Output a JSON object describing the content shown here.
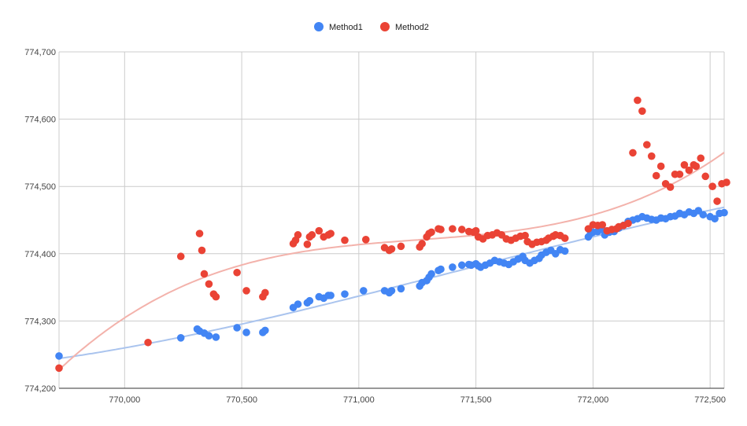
{
  "chart_data": {
    "type": "scatter",
    "title": "",
    "xlabel": "",
    "ylabel": "",
    "xlim": [
      769720,
      772560
    ],
    "ylim": [
      774200,
      774700
    ],
    "x_ticks": [
      770000,
      770500,
      771000,
      771500,
      772000,
      772500
    ],
    "x_tick_labels": [
      "770,000",
      "770,500",
      "771,000",
      "771,500",
      "772,000",
      "772,500"
    ],
    "y_ticks": [
      774200,
      774300,
      774400,
      774500,
      774600,
      774700
    ],
    "y_tick_labels": [
      "774,200",
      "774,300",
      "774,400",
      "774,500",
      "774,600",
      "774,700"
    ],
    "grid": true,
    "legend_position": "top",
    "trendlines": "polynomial",
    "series": [
      {
        "name": "Method1",
        "color": "#4285f4",
        "trend_color": "#aac4ee",
        "points": [
          [
            769720,
            774248
          ],
          [
            770240,
            774275
          ],
          [
            770310,
            774288
          ],
          [
            770320,
            774285
          ],
          [
            770340,
            774282
          ],
          [
            770360,
            774278
          ],
          [
            770390,
            774276
          ],
          [
            770480,
            774290
          ],
          [
            770520,
            774283
          ],
          [
            770590,
            774283
          ],
          [
            770600,
            774286
          ],
          [
            770720,
            774320
          ],
          [
            770740,
            774325
          ],
          [
            770780,
            774327
          ],
          [
            770790,
            774330
          ],
          [
            770830,
            774336
          ],
          [
            770850,
            774334
          ],
          [
            770870,
            774338
          ],
          [
            770880,
            774338
          ],
          [
            770940,
            774340
          ],
          [
            771020,
            774345
          ],
          [
            771110,
            774345
          ],
          [
            771130,
            774342
          ],
          [
            771140,
            774345
          ],
          [
            771180,
            774348
          ],
          [
            771260,
            774352
          ],
          [
            771270,
            774357
          ],
          [
            771290,
            774360
          ],
          [
            771300,
            774365
          ],
          [
            771310,
            774370
          ],
          [
            771340,
            774375
          ],
          [
            771350,
            774377
          ],
          [
            771400,
            774380
          ],
          [
            771440,
            774383
          ],
          [
            771470,
            774384
          ],
          [
            771480,
            774383
          ],
          [
            771500,
            774385
          ],
          [
            771510,
            774382
          ],
          [
            771520,
            774380
          ],
          [
            771540,
            774383
          ],
          [
            771560,
            774386
          ],
          [
            771580,
            774390
          ],
          [
            771600,
            774388
          ],
          [
            771620,
            774386
          ],
          [
            771640,
            774384
          ],
          [
            771660,
            774388
          ],
          [
            771680,
            774392
          ],
          [
            771700,
            774396
          ],
          [
            771710,
            774390
          ],
          [
            771730,
            774386
          ],
          [
            771750,
            774390
          ],
          [
            771770,
            774393
          ],
          [
            771780,
            774398
          ],
          [
            771800,
            774402
          ],
          [
            771820,
            774405
          ],
          [
            771840,
            774400
          ],
          [
            771860,
            774406
          ],
          [
            771880,
            774404
          ],
          [
            771980,
            774425
          ],
          [
            771990,
            774430
          ],
          [
            772000,
            774432
          ],
          [
            772020,
            774433
          ],
          [
            772040,
            774436
          ],
          [
            772050,
            774428
          ],
          [
            772070,
            774432
          ],
          [
            772090,
            774433
          ],
          [
            772110,
            774438
          ],
          [
            772130,
            774442
          ],
          [
            772150,
            774448
          ],
          [
            772170,
            774450
          ],
          [
            772190,
            774452
          ],
          [
            772210,
            774455
          ],
          [
            772230,
            774453
          ],
          [
            772250,
            774451
          ],
          [
            772270,
            774450
          ],
          [
            772290,
            774453
          ],
          [
            772310,
            774452
          ],
          [
            772330,
            774455
          ],
          [
            772350,
            774456
          ],
          [
            772370,
            774460
          ],
          [
            772390,
            774458
          ],
          [
            772410,
            774462
          ],
          [
            772430,
            774460
          ],
          [
            772450,
            774464
          ],
          [
            772470,
            774458
          ],
          [
            772500,
            774455
          ],
          [
            772520,
            774452
          ],
          [
            772540,
            774460
          ],
          [
            772560,
            774461
          ]
        ]
      },
      {
        "name": "Method2",
        "color": "#ea4335",
        "trend_color": "#f3b2ab",
        "points": [
          [
            769720,
            774230
          ],
          [
            770100,
            774268
          ],
          [
            770240,
            774396
          ],
          [
            770320,
            774430
          ],
          [
            770330,
            774405
          ],
          [
            770340,
            774370
          ],
          [
            770360,
            774355
          ],
          [
            770380,
            774340
          ],
          [
            770390,
            774336
          ],
          [
            770480,
            774372
          ],
          [
            770520,
            774345
          ],
          [
            770590,
            774336
          ],
          [
            770600,
            774342
          ],
          [
            770720,
            774415
          ],
          [
            770730,
            774420
          ],
          [
            770740,
            774428
          ],
          [
            770780,
            774414
          ],
          [
            770790,
            774425
          ],
          [
            770800,
            774428
          ],
          [
            770830,
            774434
          ],
          [
            770850,
            774425
          ],
          [
            770870,
            774428
          ],
          [
            770880,
            774430
          ],
          [
            770940,
            774420
          ],
          [
            771030,
            774421
          ],
          [
            771110,
            774409
          ],
          [
            771130,
            774405
          ],
          [
            771140,
            774407
          ],
          [
            771180,
            774411
          ],
          [
            771260,
            774410
          ],
          [
            771270,
            774415
          ],
          [
            771290,
            774425
          ],
          [
            771300,
            774430
          ],
          [
            771310,
            774432
          ],
          [
            771340,
            774437
          ],
          [
            771350,
            774436
          ],
          [
            771400,
            774437
          ],
          [
            771440,
            774436
          ],
          [
            771470,
            774433
          ],
          [
            771490,
            774432
          ],
          [
            771500,
            774434
          ],
          [
            771510,
            774425
          ],
          [
            771530,
            774422
          ],
          [
            771550,
            774427
          ],
          [
            771570,
            774428
          ],
          [
            771590,
            774431
          ],
          [
            771610,
            774428
          ],
          [
            771630,
            774422
          ],
          [
            771650,
            774420
          ],
          [
            771670,
            774423
          ],
          [
            771690,
            774426
          ],
          [
            771710,
            774427
          ],
          [
            771720,
            774418
          ],
          [
            771740,
            774414
          ],
          [
            771760,
            774417
          ],
          [
            771780,
            774418
          ],
          [
            771800,
            774420
          ],
          [
            771810,
            774423
          ],
          [
            771830,
            774426
          ],
          [
            771840,
            774428
          ],
          [
            771860,
            774427
          ],
          [
            771880,
            774423
          ],
          [
            771980,
            774437
          ],
          [
            772000,
            774443
          ],
          [
            772020,
            774442
          ],
          [
            772040,
            774443
          ],
          [
            772060,
            774434
          ],
          [
            772080,
            774436
          ],
          [
            772100,
            774437
          ],
          [
            772110,
            774440
          ],
          [
            772130,
            774442
          ],
          [
            772150,
            774445
          ],
          [
            772170,
            774550
          ],
          [
            772190,
            774628
          ],
          [
            772210,
            774612
          ],
          [
            772230,
            774562
          ],
          [
            772250,
            774545
          ],
          [
            772270,
            774516
          ],
          [
            772290,
            774530
          ],
          [
            772310,
            774504
          ],
          [
            772330,
            774499
          ],
          [
            772350,
            774518
          ],
          [
            772370,
            774518
          ],
          [
            772390,
            774532
          ],
          [
            772410,
            774524
          ],
          [
            772430,
            774532
          ],
          [
            772440,
            774530
          ],
          [
            772460,
            774542
          ],
          [
            772480,
            774515
          ],
          [
            772510,
            774500
          ],
          [
            772530,
            774478
          ],
          [
            772550,
            774504
          ],
          [
            772570,
            774506
          ]
        ]
      }
    ]
  }
}
